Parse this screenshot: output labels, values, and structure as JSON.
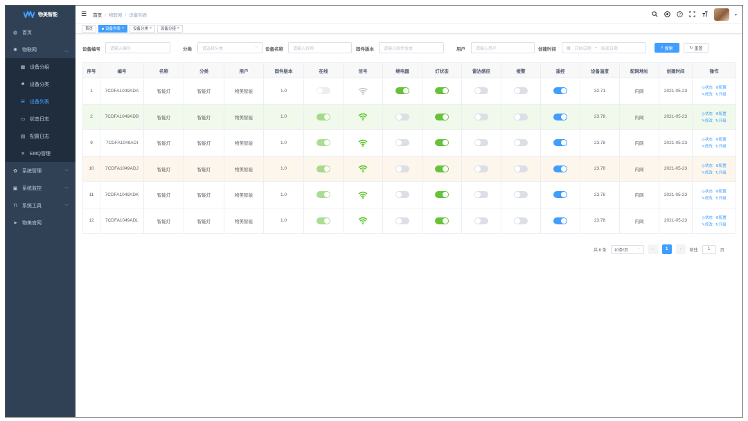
{
  "app": {
    "title": "物美智能"
  },
  "sidebar": {
    "items": [
      {
        "label": "首页",
        "icon": "dashboard-icon"
      },
      {
        "label": "物联网",
        "icon": "iot-icon"
      },
      {
        "label": "系统管理",
        "icon": "gear-icon"
      },
      {
        "label": "系统监控",
        "icon": "monitor-icon"
      },
      {
        "label": "系统工具",
        "icon": "tool-icon"
      },
      {
        "label": "物美官网",
        "icon": "send-icon"
      }
    ],
    "sub_items": [
      {
        "label": "设备分组",
        "icon": "grid-icon"
      },
      {
        "label": "设备分类",
        "icon": "tree-icon"
      },
      {
        "label": "设备列表",
        "icon": "list-icon"
      },
      {
        "label": "状态日志",
        "icon": "log-icon"
      },
      {
        "label": "配置日志",
        "icon": "form-icon"
      },
      {
        "label": "EMQ管理",
        "icon": "cross-icon"
      }
    ]
  },
  "breadcrumb": [
    "首页",
    "物联网",
    "设备列表"
  ],
  "tags": [
    "首页",
    "设备列表",
    "设备分类",
    "设备分组"
  ],
  "search": {
    "labels": {
      "device_no": "设备编号",
      "category": "分类",
      "device_name": "设备名称",
      "firmware": "固件版本",
      "user": "用户",
      "created": "创建时间"
    },
    "placeholders": {
      "device_no": "请输入编号",
      "category": "请选择分类",
      "device_name": "请输入名称",
      "firmware": "请输入固件版本",
      "user": "请输入用户",
      "start_date": "开始日期",
      "end_date": "结束日期",
      "date_sep": "-"
    },
    "search_btn": "搜索",
    "reset_btn": "重置"
  },
  "table": {
    "headers": [
      "序号",
      "编号",
      "名称",
      "分类",
      "用户",
      "固件版本",
      "在线",
      "信号",
      "继电器",
      "灯状态",
      "雷达感应",
      "报警",
      "遥控",
      "设备温度",
      "配网地址",
      "创建时间",
      "操作"
    ],
    "ops": [
      "状态",
      "配置",
      "修改",
      "升级"
    ],
    "rows": [
      {
        "seq": "1",
        "code": "7CDFA1049ADA",
        "name": "智能灯",
        "category": "智能灯",
        "user": "物美智能",
        "firmware": "1.0",
        "online": false,
        "signal": "weak",
        "relay": true,
        "light": true,
        "radar": false,
        "alarm": false,
        "remote": true,
        "temp": "32.71",
        "net": "内网",
        "created": "2021-05-23",
        "state": ""
      },
      {
        "seq": "2",
        "code": "7CDFA1049ADB",
        "name": "智能灯",
        "category": "智能灯",
        "user": "物美智能",
        "firmware": "1.0",
        "online": true,
        "signal": "strong",
        "relay": false,
        "light": true,
        "radar": false,
        "alarm": false,
        "remote": true,
        "temp": "23.78",
        "net": "内网",
        "created": "2021-05-23",
        "state": "success"
      },
      {
        "seq": "9",
        "code": "7CDFA1049ADI",
        "name": "智能灯",
        "category": "智能灯",
        "user": "物美智能",
        "firmware": "1.0",
        "online": true,
        "signal": "strong",
        "relay": false,
        "light": true,
        "radar": false,
        "alarm": false,
        "remote": true,
        "temp": "23.78",
        "net": "内网",
        "created": "2021-05-23",
        "state": ""
      },
      {
        "seq": "10",
        "code": "7CDFA1049ADJ",
        "name": "智能灯",
        "category": "智能灯",
        "user": "物美智能",
        "firmware": "1.0",
        "online": true,
        "signal": "strong",
        "relay": false,
        "light": true,
        "radar": false,
        "alarm": false,
        "remote": true,
        "temp": "23.78",
        "net": "内网",
        "created": "2021-05-23",
        "state": "warning"
      },
      {
        "seq": "11",
        "code": "7CDFA1049ADK",
        "name": "智能灯",
        "category": "智能灯",
        "user": "物美智能",
        "firmware": "1.0",
        "online": true,
        "signal": "strong",
        "relay": false,
        "light": true,
        "radar": false,
        "alarm": false,
        "remote": true,
        "temp": "23.78",
        "net": "内网",
        "created": "2021-05-23",
        "state": ""
      },
      {
        "seq": "12",
        "code": "7CDFA1049ADL",
        "name": "智能灯",
        "category": "智能灯",
        "user": "物美智能",
        "firmware": "1.0",
        "online": true,
        "signal": "strong",
        "relay": false,
        "light": true,
        "radar": false,
        "alarm": false,
        "remote": true,
        "temp": "23.78",
        "net": "内网",
        "created": "2021-05-23",
        "state": ""
      }
    ]
  },
  "pagination": {
    "total": "共 6 条",
    "page_size": "10条/页",
    "current": "1",
    "goto_label": "前往",
    "goto_value": "1",
    "page_suffix": "页"
  },
  "colors": {
    "sidebar": "#304156",
    "accent": "#409eff",
    "success": "#67c23a",
    "signal_strong": "#52c41a",
    "signal_weak": "#c0c4cc"
  }
}
